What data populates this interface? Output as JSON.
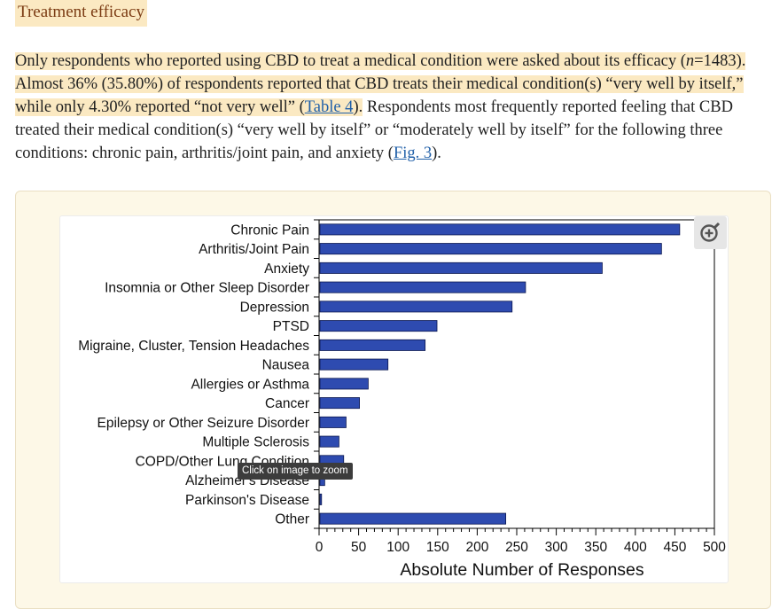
{
  "section": {
    "heading": "Treatment efficacy"
  },
  "paragraph": {
    "p1": "Only respondents who reported using CBD to treat a medical condition were asked about its efficacy (",
    "n_symbol": "n",
    "p2": "=1483). Almost 36% (35.80%) of respondents reported that CBD treats their medical condition(s) “very well by itself,” while only 4.30% reported “not very well” (",
    "table_link": "Table 4",
    "p3": ").",
    "p4": " Respondents most frequently reported feeling that CBD treated their medical condition(s) “very well by itself” or “moderately well by itself” for the following three conditions: chronic pain, arthritis/joint pain, and anxiety (",
    "fig_link": "Fig. 3",
    "p5": ")."
  },
  "figure": {
    "tooltip": "Click on image to zoom",
    "zoom_icon": "zoom-in-icon"
  },
  "chart_data": {
    "type": "bar",
    "orientation": "horizontal",
    "categories": [
      "Chronic Pain",
      "Arthritis/Joint Pain",
      "Anxiety",
      "Insomnia or Other Sleep Disorder",
      "Depression",
      "PTSD",
      "Migraine, Cluster, Tension Headaches",
      "Nausea",
      "Allergies or Asthma",
      "Cancer",
      "Epilepsy or Other Seizure Disorder",
      "Multiple Sclerosis",
      "COPD/Other Lung Condition",
      "Alzheimer's Disease",
      "Parkinson's Disease",
      "Other"
    ],
    "values": [
      455,
      432,
      357,
      260,
      243,
      148,
      133,
      86,
      61,
      50,
      33,
      24,
      30,
      6,
      2,
      235
    ],
    "xlabel": "Absolute Number of Responses",
    "xlim": [
      0,
      500
    ],
    "xticks": [
      "0",
      "50",
      "100",
      "150",
      "200",
      "250",
      "300",
      "350",
      "400",
      "450",
      "500"
    ],
    "bar_color": "#2e4bb0",
    "grid": false
  }
}
